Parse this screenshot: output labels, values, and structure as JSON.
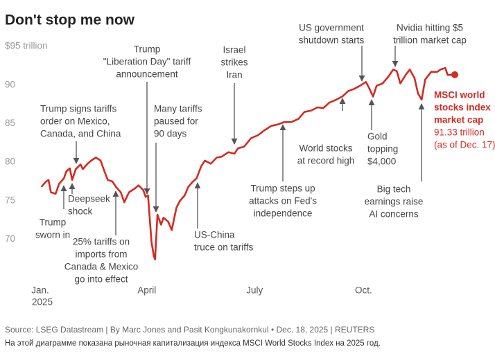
{
  "chart_data": {
    "type": "line",
    "title": "Don't stop me now",
    "xlim": [
      0,
      350
    ],
    "xticks": [
      {
        "value": 0,
        "label": "Jan."
      },
      {
        "value": 90,
        "label": "April"
      },
      {
        "value": 181,
        "label": "July"
      },
      {
        "value": 273,
        "label": "Oct."
      }
    ],
    "xtick_sublabel": "2025",
    "ylim": [
      67,
      95
    ],
    "yticks": [
      {
        "value": 95,
        "label": "$95 trillion"
      },
      90,
      85,
      80,
      75,
      70
    ],
    "grid": false,
    "series": [
      {
        "name_lines": [
          "MSCI world",
          "stocks index",
          "market cap"
        ],
        "color": "#d42a20",
        "end_value_label": "91.33 trillion",
        "end_note": "(as of Dec. 17)",
        "x": [
          1,
          5,
          7,
          9,
          13,
          16,
          20,
          22,
          25,
          27,
          30,
          34,
          36,
          40,
          43,
          47,
          51,
          54,
          57,
          61,
          64,
          68,
          71,
          75,
          80,
          83,
          87,
          89,
          91,
          94,
          96,
          97,
          99,
          102,
          104,
          108,
          111,
          115,
          118,
          122,
          125,
          129,
          132,
          136,
          139,
          144,
          149,
          153,
          159,
          164,
          167,
          172,
          178,
          184,
          189,
          195,
          201,
          206,
          212,
          218,
          223,
          229,
          234,
          239,
          244,
          250,
          255,
          260,
          265,
          270,
          275,
          278,
          281,
          284,
          289,
          294,
          298,
          301,
          304,
          309,
          312,
          316,
          319,
          322,
          325,
          330,
          335,
          338,
          342,
          344,
          350
        ],
        "values": [
          76.8,
          77.5,
          77.7,
          76.1,
          75.9,
          77.2,
          77.9,
          78.8,
          79.2,
          77.7,
          79.1,
          79.7,
          79.1,
          79.8,
          80.2,
          80.6,
          80.2,
          78.9,
          77.7,
          77.5,
          76.8,
          76.1,
          74.8,
          76.1,
          76.6,
          77.0,
          76.4,
          75.5,
          75.7,
          69.6,
          67.8,
          67.4,
          73.2,
          71.9,
          72.8,
          72.3,
          71.2,
          74.1,
          75.0,
          75.7,
          76.8,
          77.5,
          77.9,
          79.5,
          80.2,
          79.8,
          80.6,
          80.7,
          81.3,
          81.1,
          81.8,
          82.0,
          83.1,
          83.5,
          84.1,
          84.7,
          84.9,
          85.2,
          85.2,
          85.6,
          86.5,
          86.7,
          87.1,
          87.0,
          87.7,
          88.1,
          88.5,
          89.2,
          89.5,
          89.9,
          90.4,
          89.5,
          88.5,
          89.9,
          90.2,
          91.1,
          92.0,
          91.8,
          90.2,
          91.4,
          92.0,
          90.9,
          88.9,
          88.1,
          90.7,
          91.7,
          91.7,
          92.0,
          92.2,
          91.3,
          91.33
        ]
      }
    ],
    "annotations": [
      {
        "lines": [
          "Trump",
          "sworn in"
        ]
      },
      {
        "lines": [
          "Deepseek",
          "shock"
        ]
      },
      {
        "lines": [
          "Trump signs tariffs",
          "order on Mexico,",
          "Canada, and China"
        ]
      },
      {
        "lines": [
          "25% tariffs on",
          "imports from",
          "Canada & Mexico",
          "go into effect"
        ]
      },
      {
        "lines": [
          "Trump",
          "\"Liberation Day\" tariff",
          "announcement"
        ]
      },
      {
        "lines": [
          "Many tariffs",
          "paused for",
          "90 days"
        ]
      },
      {
        "lines": [
          "US-China",
          "truce on tariffs"
        ]
      },
      {
        "lines": [
          "Israel",
          "strikes",
          "Iran"
        ]
      },
      {
        "lines": [
          "Trump steps up",
          "attacks on Fed's",
          "independence"
        ]
      },
      {
        "lines": [
          "World stocks",
          "at record high"
        ]
      },
      {
        "lines": [
          "US government",
          "shutdown starts"
        ]
      },
      {
        "lines": [
          "Gold",
          "topping",
          "$4,000"
        ]
      },
      {
        "lines": [
          "Nvidia hitting $5",
          "trillion market cap"
        ]
      },
      {
        "lines": [
          "Big tech",
          "earnings raise",
          "AI concerns"
        ]
      }
    ],
    "source": "Source: LSEG Datastream | By Marc Jones and Pasit Kongkunakornkul • Dec. 18, 2025 | REUTERS",
    "caption": "На этой диаграмме показана рыночная капитализация индекса MSCI World Stocks Index на 2025 год."
  }
}
